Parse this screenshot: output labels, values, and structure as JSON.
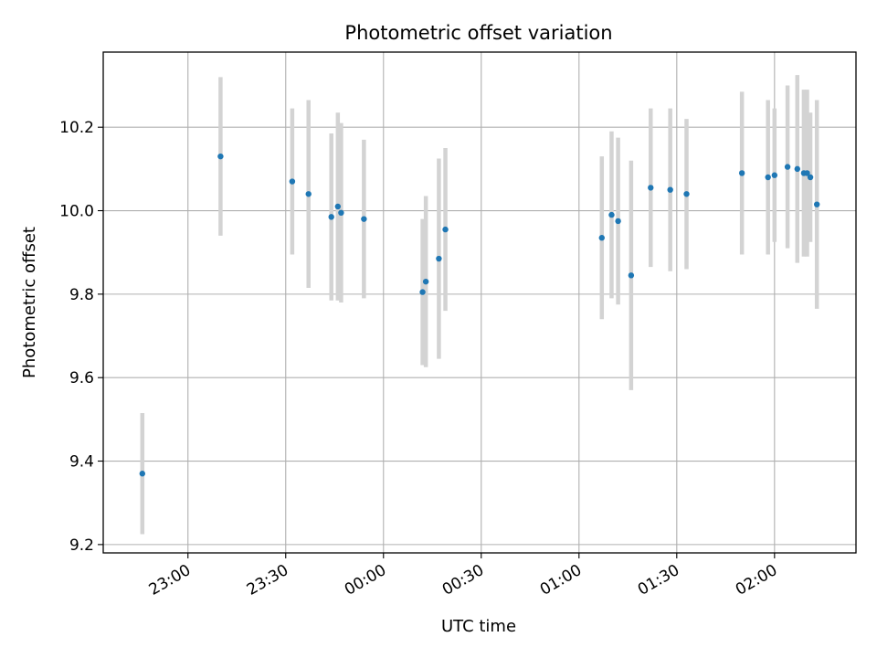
{
  "chart_data": {
    "type": "scatter",
    "title": "Photometric offset variation",
    "xlabel": "UTC time",
    "ylabel": "Photometric offset",
    "x_is_time": true,
    "x_ticks": [
      "23:00",
      "23:30",
      "00:00",
      "00:30",
      "01:00",
      "01:30",
      "02:00"
    ],
    "y_ticks": [
      "9.2",
      "9.4",
      "9.6",
      "9.8",
      "10.0",
      "10.2"
    ],
    "ylim": [
      9.18,
      10.38
    ],
    "xlim": [
      "22:34",
      "02:25"
    ],
    "grid": true,
    "marker_color": "#1f77b4",
    "errorbar_color": "#d3d3d3",
    "points": [
      {
        "t": "22:46",
        "y": 9.37,
        "err": 0.145
      },
      {
        "t": "23:10",
        "y": 10.13,
        "err": 0.19
      },
      {
        "t": "23:32",
        "y": 10.07,
        "err": 0.175
      },
      {
        "t": "23:37",
        "y": 10.04,
        "err": 0.225
      },
      {
        "t": "23:44",
        "y": 9.985,
        "err": 0.2
      },
      {
        "t": "23:46",
        "y": 10.01,
        "err": 0.225
      },
      {
        "t": "23:47",
        "y": 9.995,
        "err": 0.215
      },
      {
        "t": "23:54",
        "y": 9.98,
        "err": 0.19
      },
      {
        "t": "00:12",
        "y": 9.805,
        "err": 0.175
      },
      {
        "t": "00:13",
        "y": 9.83,
        "err": 0.205
      },
      {
        "t": "00:17",
        "y": 9.885,
        "err": 0.24
      },
      {
        "t": "00:19",
        "y": 9.955,
        "err": 0.195
      },
      {
        "t": "01:07",
        "y": 9.935,
        "err": 0.195
      },
      {
        "t": "01:10",
        "y": 9.99,
        "err": 0.2
      },
      {
        "t": "01:12",
        "y": 9.975,
        "err": 0.2
      },
      {
        "t": "01:16",
        "y": 9.845,
        "err": 0.275
      },
      {
        "t": "01:22",
        "y": 10.055,
        "err": 0.19
      },
      {
        "t": "01:28",
        "y": 10.05,
        "err": 0.195
      },
      {
        "t": "01:33",
        "y": 10.04,
        "err": 0.18
      },
      {
        "t": "01:50",
        "y": 10.09,
        "err": 0.195
      },
      {
        "t": "01:58",
        "y": 10.08,
        "err": 0.185
      },
      {
        "t": "02:00",
        "y": 10.085,
        "err": 0.16
      },
      {
        "t": "02:04",
        "y": 10.105,
        "err": 0.195
      },
      {
        "t": "02:07",
        "y": 10.1,
        "err": 0.225
      },
      {
        "t": "02:09",
        "y": 10.09,
        "err": 0.2
      },
      {
        "t": "02:10",
        "y": 10.09,
        "err": 0.2
      },
      {
        "t": "02:11",
        "y": 10.08,
        "err": 0.155
      },
      {
        "t": "02:13",
        "y": 10.015,
        "err": 0.25
      }
    ]
  }
}
